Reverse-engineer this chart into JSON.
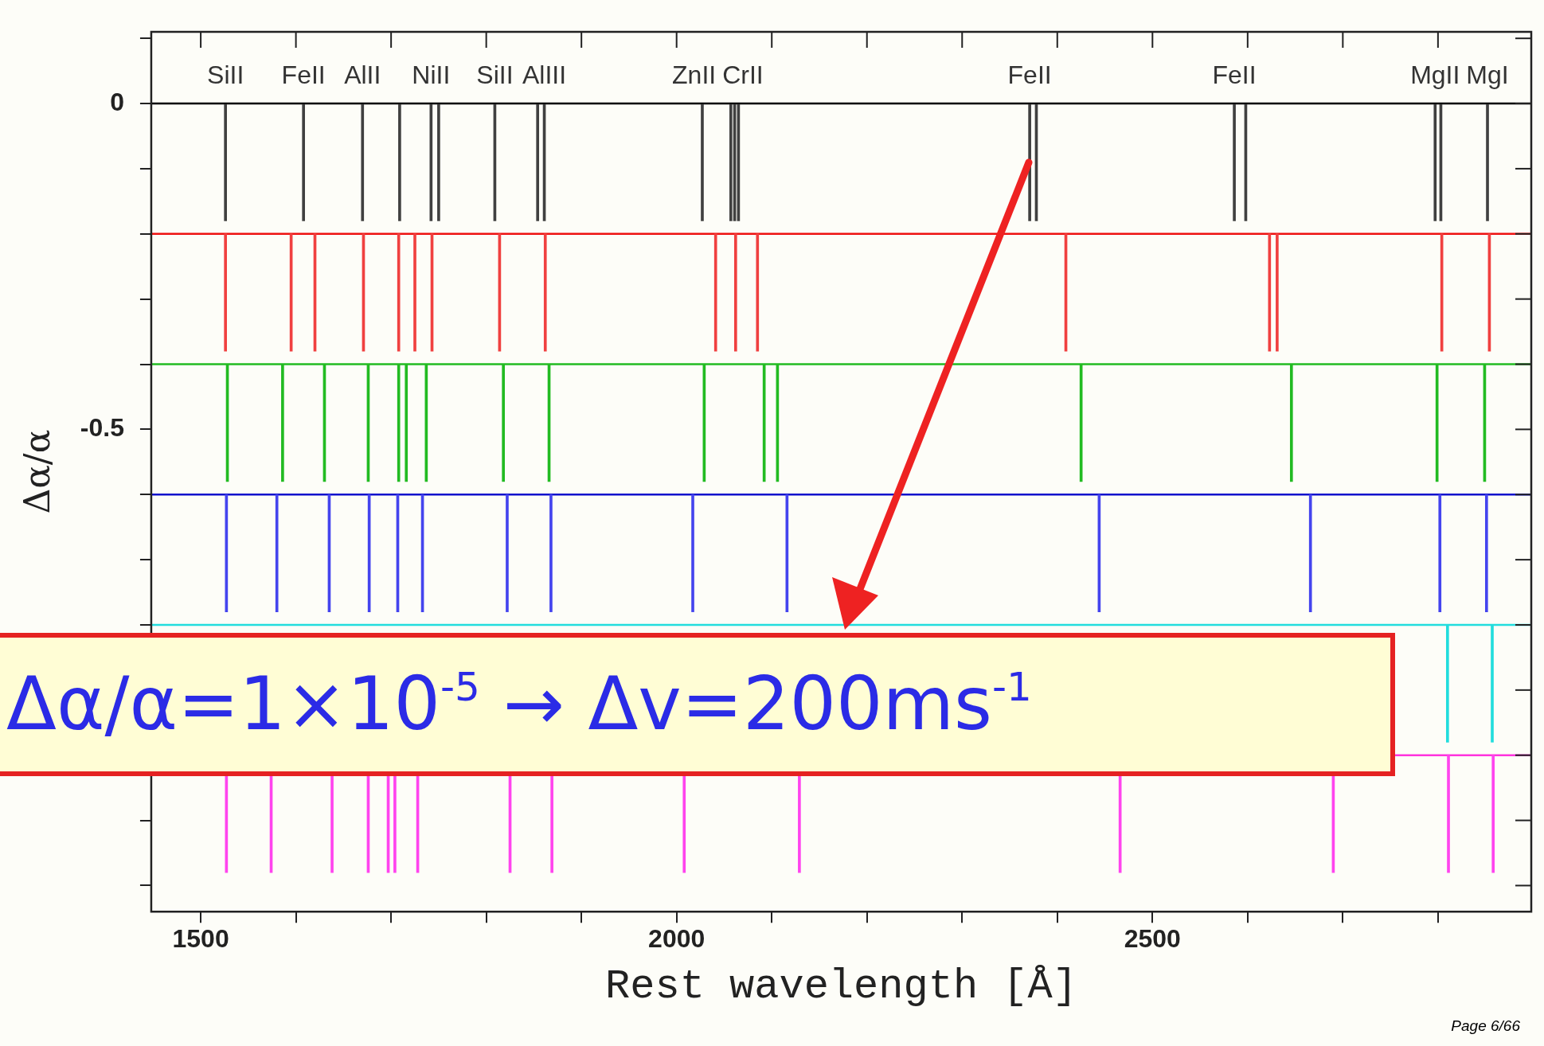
{
  "chart_data": {
    "type": "bar",
    "xlabel": "Rest wavelength [Å]",
    "ylabel": "Δα/α",
    "xlim": [
      1448,
      2898
    ],
    "ylim": [
      -1.24,
      0.11
    ],
    "xticks": [
      1500,
      {
        "value": 1600,
        "label": null
      },
      {
        "value": 1700,
        "label": null
      },
      {
        "value": 1800,
        "label": null
      },
      {
        "value": 1900,
        "label": null
      },
      2000,
      {
        "value": 2100,
        "label": null
      },
      {
        "value": 2200,
        "label": null
      },
      {
        "value": 2300,
        "label": null
      },
      {
        "value": 2400,
        "label": null
      },
      2500,
      {
        "value": 2600,
        "label": null
      },
      {
        "value": 2700,
        "label": null
      },
      {
        "value": 2800,
        "label": null
      }
    ],
    "yticks": [
      {
        "value": 0.1,
        "label": null
      },
      0,
      {
        "value": -0.1,
        "label": null
      },
      {
        "value": -0.2,
        "label": null
      },
      {
        "value": -0.3,
        "label": null
      },
      {
        "value": -0.4,
        "label": null
      },
      -0.5,
      {
        "value": -0.6,
        "label": null
      },
      {
        "value": -0.7,
        "label": null
      },
      {
        "value": -0.8,
        "label": null
      },
      {
        "value": -0.9,
        "label": null
      },
      {
        "value": -1,
        "label": null
      },
      {
        "value": -1.1,
        "label": null
      },
      {
        "value": -1.2,
        "label": null
      }
    ],
    "series": [
      {
        "color": "#404040",
        "x": [
          1526,
          1608,
          1670,
          1709,
          1742,
          1750,
          1809,
          1854,
          1861,
          2027,
          2057,
          2061,
          2065,
          2371,
          2378,
          2586,
          2598,
          2797,
          2803,
          2852
        ],
        "values": [
          -0.18,
          -0.18,
          -0.18,
          -0.18,
          -0.18,
          -0.18,
          -0.18,
          -0.18,
          -0.18,
          -0.18,
          -0.18,
          -0.18,
          -0.18,
          -0.18,
          -0.18,
          -0.18,
          -0.18,
          -0.18,
          -0.18,
          -0.18
        ],
        "base": [
          0,
          0,
          0,
          0,
          0,
          0,
          0,
          0,
          0,
          0,
          0,
          0,
          0,
          0,
          0,
          0,
          0,
          0,
          0,
          0
        ]
      },
      {
        "color": "#f04040",
        "x": [
          1526,
          1595,
          1620,
          1671,
          1708,
          1725,
          1743,
          1814,
          1862,
          2041,
          2062,
          2085,
          2409,
          2623,
          2631,
          2804,
          2854
        ],
        "values": [
          -0.18,
          -0.18,
          -0.18,
          -0.18,
          -0.18,
          -0.18,
          -0.18,
          -0.18,
          -0.18,
          -0.18,
          -0.18,
          -0.18,
          -0.18,
          -0.18,
          -0.18,
          -0.18,
          -0.18
        ],
        "base": [
          -0.2,
          -0.2,
          -0.2,
          -0.2,
          -0.2,
          -0.2,
          -0.2,
          -0.2,
          -0.2,
          -0.2,
          -0.2,
          -0.2,
          -0.2,
          -0.2,
          -0.2,
          -0.2,
          -0.2
        ]
      },
      {
        "color": "#22bb22",
        "x": [
          1528,
          1586,
          1630,
          1676,
          1708,
          1716,
          1737,
          1818,
          1866,
          2029,
          2092,
          2106,
          2425,
          2646,
          2799,
          2849
        ],
        "values": [
          -0.18,
          -0.18,
          -0.18,
          -0.18,
          -0.18,
          -0.18,
          -0.18,
          -0.18,
          -0.18,
          -0.18,
          -0.18,
          -0.18,
          -0.18,
          -0.18,
          -0.18,
          -0.18
        ],
        "base": [
          -0.4,
          -0.4,
          -0.4,
          -0.4,
          -0.4,
          -0.4,
          -0.4,
          -0.4,
          -0.4,
          -0.4,
          -0.4,
          -0.4,
          -0.4,
          -0.4,
          -0.4,
          -0.4
        ]
      },
      {
        "color": "#4444ee",
        "x": [
          1527,
          1580,
          1635,
          1677,
          1707,
          1733,
          1822,
          1868,
          2017,
          2116,
          2444,
          2666,
          2802,
          2851
        ],
        "values": [
          -0.18,
          -0.18,
          -0.18,
          -0.18,
          -0.18,
          -0.18,
          -0.18,
          -0.18,
          -0.18,
          -0.18,
          -0.18,
          -0.18,
          -0.18,
          -0.18
        ],
        "base": [
          -0.6,
          -0.6,
          -0.6,
          -0.6,
          -0.6,
          -0.6,
          -0.6,
          -0.6,
          -0.6,
          -0.6,
          -0.6,
          -0.6,
          -0.6,
          -0.6
        ]
      },
      {
        "color": "#22dddd",
        "x": [
          2810,
          2857
        ],
        "values": [
          -0.18,
          -0.18
        ],
        "base": [
          -0.8,
          -0.8
        ]
      },
      {
        "color": "#ff44ee",
        "x": [
          1527,
          1574,
          1638,
          1676,
          1697,
          1704,
          1728,
          1825,
          1869,
          2008,
          2129,
          2466,
          2690,
          2811,
          2858
        ],
        "values": [
          -0.18,
          -0.18,
          -0.18,
          -0.18,
          -0.18,
          -0.18,
          -0.18,
          -0.18,
          -0.18,
          -0.18,
          -0.18,
          -0.18,
          -0.18,
          -0.18,
          -0.18
        ],
        "base": [
          -1,
          -1,
          -1,
          -1,
          -1,
          -1,
          -1,
          -1,
          -1,
          -1,
          -1,
          -1,
          -1,
          -1,
          -1
        ]
      }
    ],
    "ref_lines": [
      {
        "axis": "y",
        "value": 0,
        "color": "#000000"
      },
      {
        "axis": "y",
        "value": -0.2,
        "color": "#ee1111"
      },
      {
        "axis": "y",
        "value": -0.4,
        "color": "#22bb22"
      },
      {
        "axis": "y",
        "value": -0.6,
        "color": "#1111cc"
      },
      {
        "axis": "y",
        "value": -0.8,
        "color": "#22dddd"
      },
      {
        "axis": "y",
        "value": -1,
        "color": "#ff33dd"
      }
    ],
    "annotations": [
      {
        "text": "SiII",
        "x": 1526,
        "y": 0
      },
      {
        "text": "FeII",
        "x": 1608,
        "y": 0
      },
      {
        "text": "AlII",
        "x": 1670,
        "y": 0
      },
      {
        "text": "NiII",
        "x": 1742,
        "y": 0
      },
      {
        "text": "SiII",
        "x": 1809,
        "y": 0
      },
      {
        "text": "AlIII",
        "x": 1861,
        "y": 0
      },
      {
        "text": "ZnII",
        "x": 2027,
        "y": 0
      },
      {
        "text": "CrII",
        "x": 2061,
        "y": 0
      },
      {
        "text": "FeII",
        "x": 2371,
        "y": 0
      },
      {
        "text": "FeII",
        "x": 2586,
        "y": 0
      },
      {
        "text": "MgII",
        "x": 2797,
        "y": 0
      },
      {
        "text": "MgI",
        "x": 2852,
        "y": 0
      },
      "Δα/α=1×10$^{-5}$ → Δv=200ms$^{-1}$",
      "Page 6/66"
    ]
  }
}
